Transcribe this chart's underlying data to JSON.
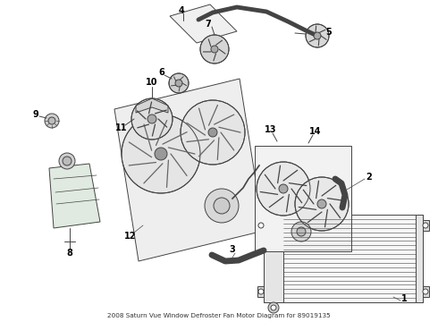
{
  "title": "2008 Saturn Vue Window Defroster Fan Motor Diagram for 89019135",
  "bg_color": "#ffffff",
  "line_color": "#444444",
  "label_color": "#000000"
}
